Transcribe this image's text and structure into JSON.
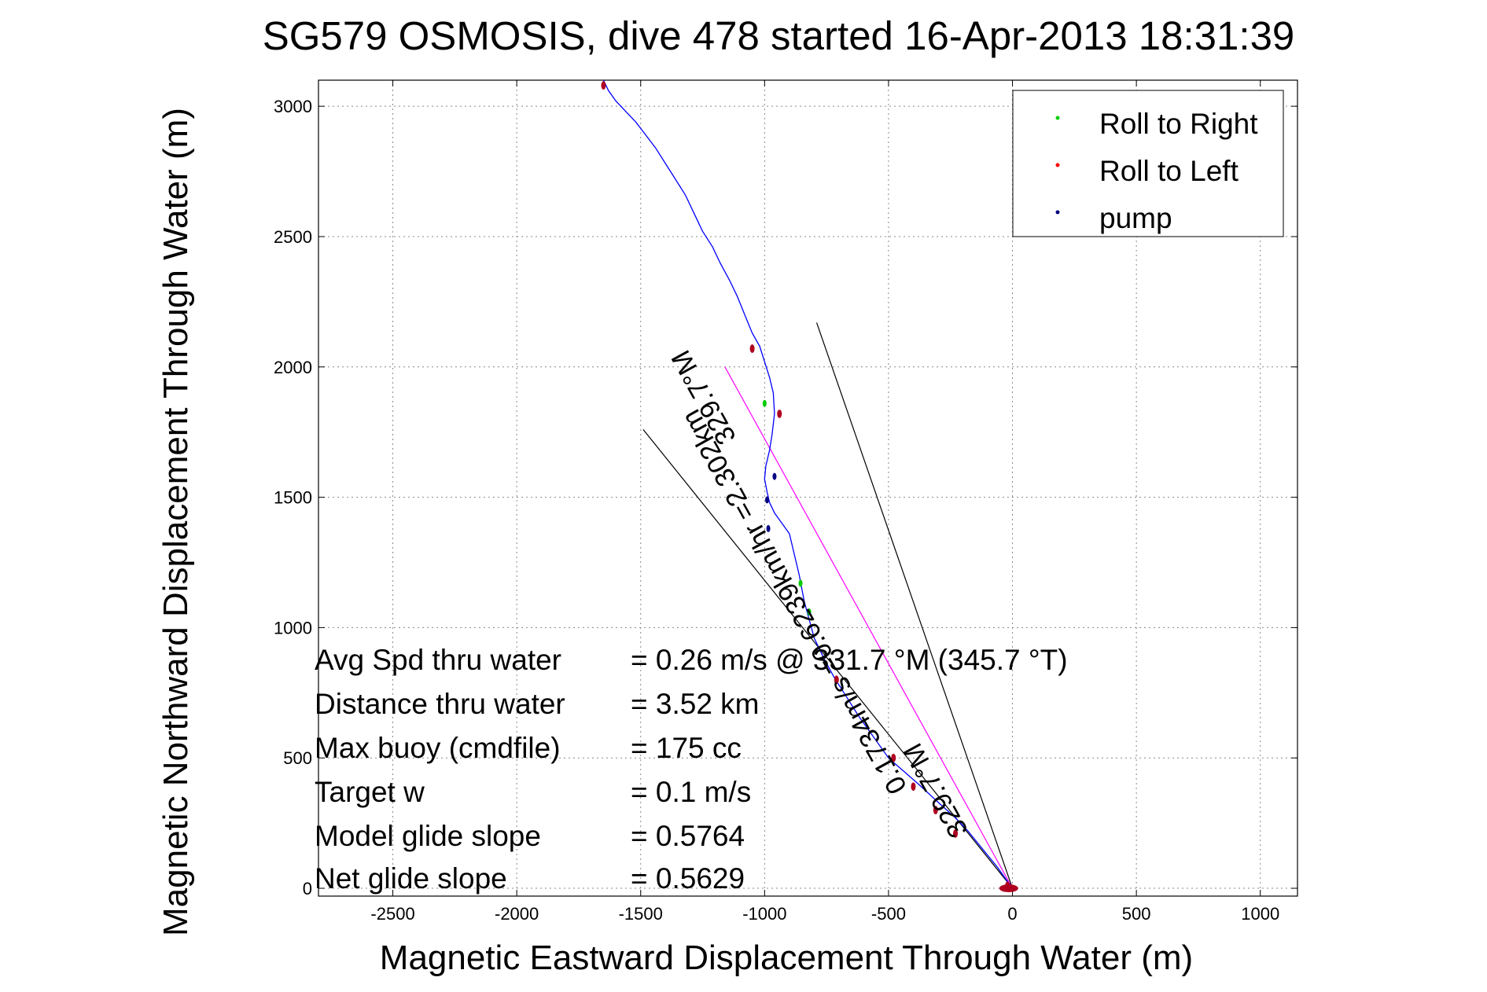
{
  "chart_data": {
    "type": "line",
    "title": "SG579 OSMOSIS, dive 478 started 16-Apr-2013 18:31:39",
    "xlabel": "Magnetic Eastward Displacement Through Water (m)",
    "ylabel": "Magnetic Northward Displacement Through Water (m)",
    "xlim": [
      -2800,
      1150
    ],
    "ylim": [
      -30,
      3100
    ],
    "xticks": [
      -2500,
      -2000,
      -1500,
      -1000,
      -500,
      0,
      500,
      1000
    ],
    "yticks": [
      0,
      500,
      1000,
      1500,
      2000,
      2500,
      3000
    ],
    "grid": true,
    "legend": {
      "position": "top-right",
      "entries": [
        {
          "label": "Roll to Right",
          "color": "#00cc00"
        },
        {
          "label": "Roll to Left",
          "color": "#ff0000"
        },
        {
          "label": "pump",
          "color": "#000080"
        }
      ]
    },
    "series": [
      {
        "name": "",
        "color": "#0000ff",
        "x": [
          0,
          -60,
          -120,
          -180,
          -230,
          -300,
          -380,
          -440,
          -500,
          -560,
          -620,
          -680,
          -720,
          -760,
          -800,
          -820,
          -840,
          -850,
          -860,
          -880,
          -900,
          -930,
          -960,
          -980,
          -990,
          -1000,
          -995,
          -980,
          -970,
          -960,
          -965,
          -980,
          -1000,
          -1020,
          -1050,
          -1080,
          -1110,
          -1140,
          -1180,
          -1210,
          -1250,
          -1290,
          -1320,
          -1360,
          -1400,
          -1440,
          -1480,
          -1520,
          -1560,
          -1600,
          -1630,
          -1650
        ],
        "y": [
          0,
          80,
          150,
          220,
          270,
          330,
          400,
          450,
          500,
          580,
          660,
          750,
          810,
          880,
          960,
          1030,
          1100,
          1150,
          1200,
          1280,
          1360,
          1400,
          1440,
          1480,
          1520,
          1570,
          1620,
          1680,
          1740,
          1820,
          1900,
          1960,
          2020,
          2080,
          2130,
          2200,
          2270,
          2330,
          2400,
          2460,
          2520,
          2600,
          2660,
          2720,
          2780,
          2840,
          2890,
          2940,
          2980,
          3020,
          3060,
          3100
        ]
      }
    ],
    "direction_lines": [
      {
        "name": "heading",
        "color": "#ff00ff",
        "x": [
          0,
          -1160
        ],
        "y": [
          0,
          2000
        ]
      },
      {
        "name": "cone-left",
        "color": "#000000",
        "x": [
          0,
          -1490
        ],
        "y": [
          0,
          1760
        ]
      },
      {
        "name": "cone-right",
        "color": "#000000",
        "x": [
          0,
          -790
        ],
        "y": [
          0,
          2170
        ]
      }
    ],
    "roll_left_marks": {
      "x": [
        -1650,
        -1050,
        -940,
        -710,
        -480,
        -400,
        -310,
        -230,
        -20
      ],
      "y": [
        3080,
        2070,
        1820,
        800,
        500,
        390,
        300,
        210,
        10
      ]
    },
    "roll_right_marks": {
      "x": [
        -855,
        -820,
        -1000
      ],
      "y": [
        1170,
        1060,
        1860
      ]
    },
    "pump_marks": {
      "x": [
        -990,
        -985,
        -960
      ],
      "y": [
        1490,
        1380,
        1580
      ]
    },
    "stats": [
      {
        "label": "Avg Spd thru water",
        "value": "=  0.26 m/s @ 331.7 °M (345.7 °T)"
      },
      {
        "label": "Distance thru water",
        "value": "=  3.52 km"
      },
      {
        "label": "Max buoy (cmdfile)",
        "value": "= 175 cc"
      },
      {
        "label": "Target w",
        "value": "= 0.1 m/s"
      },
      {
        "label": "Model glide slope",
        "value": "= 0.5764"
      },
      {
        "label": "Net glide slope",
        "value": "= 0.5629"
      }
    ],
    "annotations": [
      {
        "text": "329.7°M"
      },
      {
        "text": "0.1734m/s =0.6239km/hr =2.302km"
      },
      {
        "text": "329.7°M"
      }
    ]
  }
}
